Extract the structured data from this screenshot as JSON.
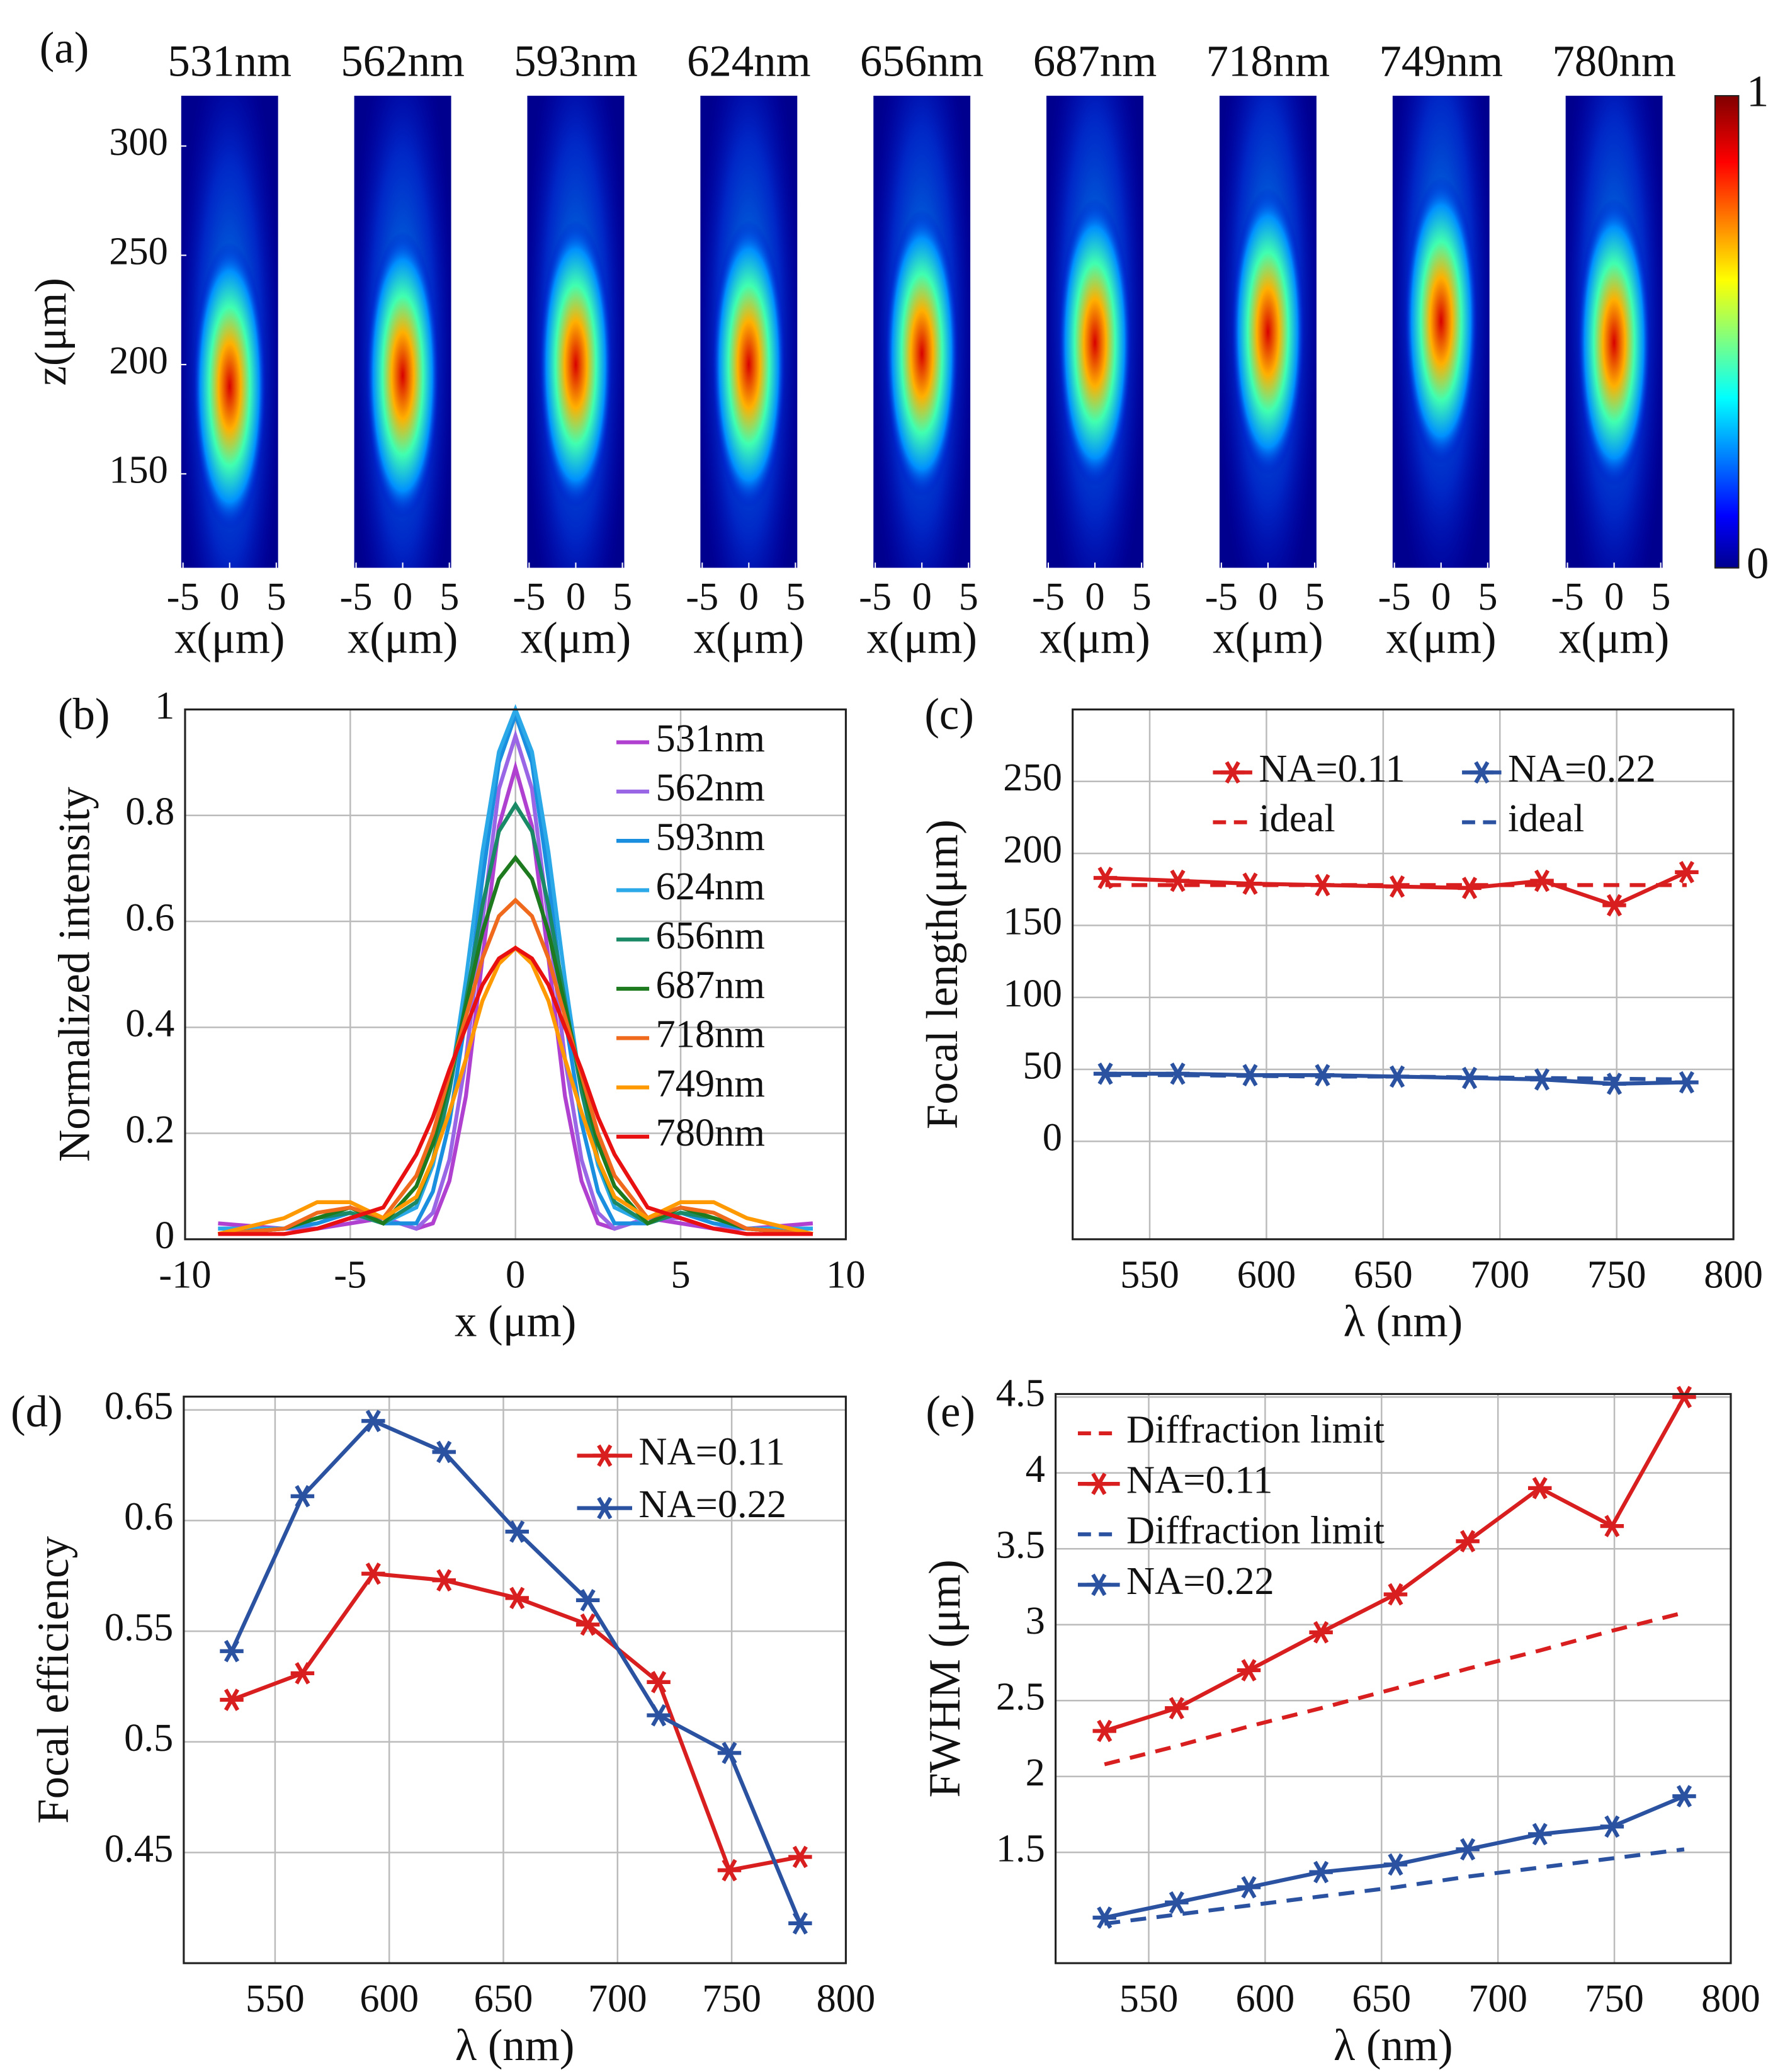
{
  "chart_data": [
    {
      "type": "heatmap",
      "label": "(a)",
      "categories": [
        "531nm",
        "562nm",
        "593nm",
        "624nm",
        "656nm",
        "687nm",
        "718nm",
        "749nm",
        "780nm"
      ],
      "focus_z": [
        190,
        195,
        200,
        200,
        205,
        210,
        215,
        220,
        210
      ],
      "xlim": [
        -5.2,
        5.2
      ],
      "xticks": [
        -5,
        0,
        5
      ],
      "ylim": [
        107,
        323
      ],
      "yticks": [
        150,
        200,
        250,
        300
      ],
      "x_label": "x(μm)",
      "y_label": "z(μm)",
      "colormap": "jet",
      "colorbar": {
        "clim": [
          0,
          1
        ],
        "ticks": [
          0,
          1
        ]
      }
    },
    {
      "type": "line",
      "label": "(b)",
      "x": [
        -9,
        -7,
        -6,
        -5,
        -4,
        -3,
        -2.5,
        -2,
        -1.5,
        -1,
        -0.5,
        0,
        0.5,
        1,
        1.5,
        2,
        2.5,
        3,
        4,
        5,
        6,
        7,
        9
      ],
      "series": [
        {
          "name": "531nm",
          "color": "#b040d0",
          "values": [
            0.03,
            0.02,
            0.02,
            0.03,
            0.04,
            0.02,
            0.03,
            0.11,
            0.27,
            0.53,
            0.78,
            0.89,
            0.78,
            0.53,
            0.27,
            0.11,
            0.03,
            0.02,
            0.04,
            0.03,
            0.02,
            0.02,
            0.03
          ]
        },
        {
          "name": "562nm",
          "color": "#9966e6",
          "values": [
            0.02,
            0.02,
            0.02,
            0.04,
            0.04,
            0.02,
            0.05,
            0.15,
            0.34,
            0.6,
            0.85,
            0.95,
            0.85,
            0.6,
            0.34,
            0.15,
            0.05,
            0.02,
            0.04,
            0.04,
            0.02,
            0.02,
            0.02
          ]
        },
        {
          "name": "593nm",
          "color": "#1a8fe0",
          "values": [
            0.02,
            0.02,
            0.03,
            0.05,
            0.03,
            0.03,
            0.09,
            0.22,
            0.42,
            0.68,
            0.9,
            0.99,
            0.9,
            0.68,
            0.42,
            0.22,
            0.09,
            0.03,
            0.03,
            0.05,
            0.03,
            0.02,
            0.02
          ]
        },
        {
          "name": "624nm",
          "color": "#2aa8e8",
          "values": [
            0.02,
            0.02,
            0.04,
            0.05,
            0.03,
            0.06,
            0.14,
            0.28,
            0.49,
            0.73,
            0.92,
            1,
            0.92,
            0.73,
            0.49,
            0.28,
            0.14,
            0.06,
            0.03,
            0.05,
            0.04,
            0.02,
            0.02
          ]
        },
        {
          "name": "656nm",
          "color": "#1a8a66",
          "values": [
            0.01,
            0.02,
            0.04,
            0.05,
            0.03,
            0.07,
            0.15,
            0.28,
            0.45,
            0.63,
            0.77,
            0.82,
            0.77,
            0.63,
            0.45,
            0.28,
            0.15,
            0.07,
            0.03,
            0.05,
            0.04,
            0.02,
            0.01
          ]
        },
        {
          "name": "687nm",
          "color": "#1e7a1e",
          "values": [
            0.01,
            0.02,
            0.04,
            0.06,
            0.03,
            0.1,
            0.18,
            0.3,
            0.44,
            0.58,
            0.68,
            0.72,
            0.68,
            0.58,
            0.44,
            0.3,
            0.18,
            0.1,
            0.03,
            0.06,
            0.04,
            0.02,
            0.01
          ]
        },
        {
          "name": "718nm",
          "color": "#f06a1e",
          "values": [
            0.01,
            0.02,
            0.05,
            0.06,
            0.04,
            0.12,
            0.2,
            0.31,
            0.42,
            0.53,
            0.61,
            0.64,
            0.61,
            0.53,
            0.42,
            0.31,
            0.2,
            0.12,
            0.04,
            0.06,
            0.05,
            0.02,
            0.01
          ]
        },
        {
          "name": "749nm",
          "color": "#ff9900",
          "values": [
            0.01,
            0.04,
            0.07,
            0.07,
            0.04,
            0.08,
            0.15,
            0.24,
            0.34,
            0.45,
            0.52,
            0.55,
            0.52,
            0.45,
            0.34,
            0.24,
            0.15,
            0.08,
            0.04,
            0.07,
            0.07,
            0.04,
            0.01
          ]
        },
        {
          "name": "780nm",
          "color": "#e81010",
          "values": [
            0.01,
            0.01,
            0.02,
            0.04,
            0.06,
            0.16,
            0.23,
            0.32,
            0.4,
            0.48,
            0.53,
            0.55,
            0.53,
            0.48,
            0.4,
            0.32,
            0.23,
            0.16,
            0.06,
            0.04,
            0.02,
            0.01,
            0.01
          ]
        }
      ],
      "xlim": [
        -10,
        10
      ],
      "xticks": [
        -10,
        -5,
        0,
        5,
        10
      ],
      "ylim": [
        0,
        1
      ],
      "yticks": [
        0,
        0.2,
        0.4,
        0.6,
        0.8,
        1
      ],
      "grid": true,
      "legend": "upper right",
      "x_label": "x (μm)",
      "y_label": "Normalized intensity"
    },
    {
      "type": "line",
      "label": "(c)",
      "x": [
        531,
        562,
        593,
        624,
        656,
        687,
        718,
        749,
        780
      ],
      "series": [
        {
          "name": "NA=0.11",
          "color": "#d81e1e",
          "marker": "asterisk",
          "values": [
            183,
            181,
            179,
            178,
            177,
            176,
            181,
            164,
            187
          ]
        },
        {
          "name": "ideal",
          "color": "#d81e1e",
          "dash": true,
          "values": [
            178,
            178,
            178,
            178,
            178,
            178,
            178,
            178,
            178
          ]
        },
        {
          "name": "NA=0.22",
          "color": "#2a52a0",
          "marker": "asterisk",
          "values": [
            47,
            47,
            46,
            46,
            45,
            44,
            43,
            40,
            41
          ]
        },
        {
          "name": "ideal",
          "color": "#2a52a0",
          "dash": true,
          "values": [
            46,
            46,
            45.5,
            45,
            45,
            44.5,
            44,
            43.5,
            43
          ]
        }
      ],
      "xlim": [
        517,
        800
      ],
      "xticks": [
        550,
        600,
        650,
        700,
        750,
        800
      ],
      "ylim": [
        -68,
        300
      ],
      "yticks": [
        0,
        50,
        100,
        150,
        200,
        250
      ],
      "grid": true,
      "legend": "upper right",
      "x_label": "λ (nm)",
      "y_label": "Focal length(μm)"
    },
    {
      "type": "line",
      "label": "(d)",
      "x": [
        531,
        562,
        593,
        624,
        656,
        687,
        718,
        749,
        780
      ],
      "series": [
        {
          "name": "NA=0.11",
          "color": "#d81e1e",
          "marker": "asterisk",
          "values": [
            0.519,
            0.531,
            0.576,
            0.573,
            0.565,
            0.553,
            0.527,
            0.442,
            0.448
          ]
        },
        {
          "name": "NA=0.22",
          "color": "#2a52a0",
          "marker": "asterisk",
          "values": [
            0.541,
            0.611,
            0.645,
            0.631,
            0.595,
            0.564,
            0.512,
            0.495,
            0.418
          ]
        }
      ],
      "xlim": [
        510,
        800
      ],
      "xticks": [
        550,
        600,
        650,
        700,
        750,
        800
      ],
      "ylim": [
        0.4,
        0.656
      ],
      "yticks": [
        0.45,
        0.5,
        0.55,
        0.6,
        0.65
      ],
      "grid": true,
      "legend": "upper right",
      "x_label": "λ (nm)",
      "y_label": "Focal efficiency"
    },
    {
      "type": "line",
      "label": "(e)",
      "x": [
        531,
        562,
        593,
        624,
        656,
        687,
        718,
        749,
        780
      ],
      "series": [
        {
          "name": "Diffraction limit",
          "color": "#d81e1e",
          "dash": true,
          "values": [
            2.08,
            2.2,
            2.33,
            2.45,
            2.58,
            2.71,
            2.83,
            2.96,
            3.08
          ]
        },
        {
          "name": "NA=0.11",
          "color": "#d81e1e",
          "marker": "asterisk",
          "values": [
            2.3,
            2.45,
            2.7,
            2.95,
            3.2,
            3.55,
            3.9,
            3.65,
            4.5
          ]
        },
        {
          "name": "Diffraction limit",
          "color": "#2a52a0",
          "dash": true,
          "values": [
            1.03,
            1.09,
            1.15,
            1.21,
            1.27,
            1.34,
            1.4,
            1.46,
            1.52
          ]
        },
        {
          "name": "NA=0.22",
          "color": "#2a52a0",
          "marker": "asterisk",
          "values": [
            1.07,
            1.17,
            1.27,
            1.37,
            1.42,
            1.52,
            1.62,
            1.67,
            1.87
          ]
        }
      ],
      "xlim": [
        510,
        800
      ],
      "xticks": [
        550,
        600,
        650,
        700,
        750,
        800
      ],
      "ylim": [
        0.77,
        4.52
      ],
      "yticks": [
        1.5,
        2,
        2.5,
        3,
        3.5,
        4,
        4.5
      ],
      "grid": true,
      "legend": "upper left",
      "x_label": "λ (nm)",
      "y_label": "FWHM (μm)"
    }
  ]
}
